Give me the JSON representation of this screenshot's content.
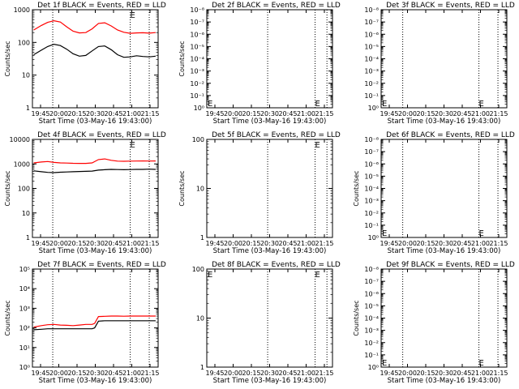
{
  "figure": {
    "x_tick_labels": [
      "19:45",
      "20:00",
      "20:15",
      "20:30",
      "20:45",
      "21:00",
      "21:15"
    ],
    "x_label": "Start Time (03-May-16 19:43:00)",
    "y_label": "Counts/sec",
    "legend_text": "BLACK = Events, RED = LLD",
    "colors": {
      "events": "#000000",
      "lld": "#ff0000",
      "dotted_markers": "#000000"
    }
  },
  "chart_data": [
    {
      "type": "line",
      "title": "Det 1f BLACK = Events, RED = LLD",
      "xlabel": "Start Time (03-May-16 19:43:00)",
      "ylabel": "Counts/sec",
      "yscale": "log",
      "ylim": [
        1,
        1000
      ],
      "ytick_labels": [
        "1",
        "10",
        "100",
        "1000"
      ],
      "xlim": [
        "19:43",
        "21:22"
      ],
      "dotted_vlines": [
        "19:59",
        "21:00",
        "21:15"
      ],
      "markers": [
        {
          "label": "E",
          "x": "21:00",
          "y": 1000
        }
      ],
      "series": [
        {
          "name": "Events",
          "color": "#000000",
          "x": [
            "19:44",
            "19:50",
            "19:55",
            "20:00",
            "20:05",
            "20:10",
            "20:15",
            "20:20",
            "20:25",
            "20:30",
            "20:35",
            "20:40",
            "20:45",
            "20:50",
            "20:55",
            "21:00",
            "21:05",
            "21:10",
            "21:15",
            "21:20"
          ],
          "y": [
            42,
            58,
            75,
            88,
            80,
            62,
            45,
            38,
            40,
            55,
            75,
            78,
            60,
            42,
            35,
            36,
            39,
            37,
            36,
            38
          ]
        },
        {
          "name": "LLD",
          "color": "#ff0000",
          "x": [
            "19:44",
            "19:50",
            "19:55",
            "20:00",
            "20:05",
            "20:10",
            "20:15",
            "20:20",
            "20:25",
            "20:30",
            "20:35",
            "20:40",
            "20:45",
            "20:50",
            "20:55",
            "21:00",
            "21:05",
            "21:10",
            "21:15",
            "21:20"
          ],
          "y": [
            240,
            330,
            410,
            460,
            420,
            300,
            220,
            195,
            200,
            260,
            380,
            400,
            320,
            240,
            205,
            190,
            195,
            198,
            192,
            200
          ]
        }
      ]
    },
    {
      "type": "line",
      "title": "Det 2f BLACK = Events, RED = LLD",
      "xlabel": "Start Time (03-May-16 19:43:00)",
      "ylabel": "Counts/sec",
      "yscale": "log",
      "ylim": [
        1,
        1e-08
      ],
      "ytick_labels": [
        "10⁰",
        "10⁻¹",
        "10⁻²",
        "10⁻³",
        "10⁻⁴",
        "10⁻⁵",
        "10⁻⁶",
        "10⁻⁷",
        "10⁻⁸"
      ],
      "xlim": [
        "18:43",
        "21:22"
      ],
      "dotted_vlines": [
        "20:00",
        "21:00",
        "21:15"
      ],
      "markers": [
        {
          "label": "E",
          "x": "18:43",
          "y": 1
        },
        {
          "label": "E",
          "x": "21:00",
          "y": 1
        }
      ],
      "series": []
    },
    {
      "type": "line",
      "title": "Det 3f BLACK = Events, RED = LLD",
      "xlabel": "Start Time (03-May-16 19:43:00)",
      "ylabel": "",
      "yscale": "log",
      "ylim": [
        1,
        1e-08
      ],
      "ytick_labels": [
        "10⁰",
        "10⁻¹",
        "10⁻²",
        "10⁻³",
        "10⁻⁴",
        "10⁻⁵",
        "10⁻⁶",
        "10⁻⁷",
        "10⁻⁸"
      ],
      "xlim": [
        "19:43",
        "21:22"
      ],
      "dotted_vlines": [
        "20:00",
        "21:00",
        "21:15"
      ],
      "markers": [
        {
          "label": "E",
          "x": "19:43",
          "y": 1
        },
        {
          "label": "E",
          "x": "21:00",
          "y": 1
        }
      ],
      "series": []
    },
    {
      "type": "line",
      "title": "Det 4f BLACK = Events, RED = LLD",
      "xlabel": "Start Time (03-May-16 19:43:00)",
      "ylabel": "Counts/sec",
      "yscale": "log",
      "ylim": [
        1,
        10000
      ],
      "ytick_labels": [
        "1",
        "10",
        "100",
        "1000",
        "10000"
      ],
      "xlim": [
        "19:43",
        "21:22"
      ],
      "dotted_vlines": [
        "19:59",
        "21:00",
        "21:15"
      ],
      "markers": [
        {
          "label": "E",
          "x": "21:00",
          "y": 10000
        }
      ],
      "series": [
        {
          "name": "Events",
          "color": "#000000",
          "x": [
            "19:44",
            "19:50",
            "19:55",
            "20:00",
            "20:05",
            "20:10",
            "20:15",
            "20:20",
            "20:25",
            "20:30",
            "20:35",
            "20:40",
            "20:45",
            "20:50",
            "20:55",
            "21:00",
            "21:05",
            "21:10",
            "21:15",
            "21:20"
          ],
          "y": [
            520,
            480,
            450,
            440,
            460,
            470,
            480,
            490,
            500,
            510,
            560,
            580,
            600,
            590,
            580,
            590,
            600,
            600,
            610,
            600
          ]
        },
        {
          "name": "LLD",
          "color": "#ff0000",
          "x": [
            "19:44",
            "19:50",
            "19:55",
            "20:00",
            "20:05",
            "20:10",
            "20:15",
            "20:20",
            "20:25",
            "20:30",
            "20:35",
            "20:40",
            "20:45",
            "20:50",
            "20:55",
            "21:00",
            "21:05",
            "21:10",
            "21:15",
            "21:20"
          ],
          "y": [
            1100,
            1200,
            1250,
            1150,
            1100,
            1080,
            1060,
            1050,
            1050,
            1100,
            1500,
            1600,
            1400,
            1300,
            1280,
            1300,
            1310,
            1320,
            1310,
            1320
          ]
        }
      ]
    },
    {
      "type": "line",
      "title": "Det 5f BLACK = Events, RED = LLD",
      "xlabel": "Start Time (03-May-16 19:43:00)",
      "ylabel": "Counts/sec",
      "yscale": "log",
      "ylim": [
        1,
        100
      ],
      "ytick_labels": [
        "1",
        "10",
        "100"
      ],
      "xlim": [
        "18:43",
        "21:22"
      ],
      "dotted_vlines": [
        "20:00",
        "21:00",
        "21:15"
      ],
      "markers": [
        {
          "label": "E",
          "x": "21:00",
          "y": 100
        }
      ],
      "series": []
    },
    {
      "type": "line",
      "title": "Det 6f BLACK = Events, RED = LLD",
      "xlabel": "Start Time (03-May-16 19:43:00)",
      "ylabel": "Counts/sec",
      "yscale": "log",
      "ylim": [
        1,
        1e-08
      ],
      "ytick_labels": [
        "10⁰",
        "10⁻¹",
        "10⁻²",
        "10⁻³",
        "10⁻⁴",
        "10⁻⁵",
        "10⁻⁶",
        "10⁻⁷",
        "10⁻⁸"
      ],
      "xlim": [
        "19:43",
        "21:22"
      ],
      "dotted_vlines": [
        "20:00",
        "21:00",
        "21:15"
      ],
      "markers": [
        {
          "label": "E",
          "x": "19:43",
          "y": 1
        },
        {
          "label": "E",
          "x": "21:00",
          "y": 1
        }
      ],
      "series": []
    },
    {
      "type": "line",
      "title": "Det 7f BLACK = Events, RED = LLD",
      "xlabel": "Start Time (03-May-16 19:43:00)",
      "ylabel": "Counts/sec",
      "yscale": "log",
      "ylim": [
        1,
        100000
      ],
      "ytick_labels": [
        "10⁰",
        "10¹",
        "10²",
        "10³",
        "10⁴",
        "10⁵"
      ],
      "xlim": [
        "19:43",
        "21:22"
      ],
      "dotted_vlines": [
        "19:59",
        "21:00",
        "21:15"
      ],
      "markers": [],
      "series": [
        {
          "name": "Events",
          "color": "#000000",
          "x": [
            "19:44",
            "19:50",
            "19:55",
            "20:00",
            "20:05",
            "20:10",
            "20:15",
            "20:20",
            "20:25",
            "20:30",
            "20:32",
            "20:35",
            "20:40",
            "20:45",
            "20:50",
            "20:55",
            "21:00",
            "21:05",
            "21:10",
            "21:15",
            "21:20"
          ],
          "y": [
            80,
            85,
            90,
            90,
            90,
            90,
            90,
            90,
            90,
            90,
            100,
            220,
            230,
            230,
            230,
            230,
            230,
            230,
            230,
            230,
            230
          ]
        },
        {
          "name": "LLD",
          "color": "#ff0000",
          "x": [
            "19:44",
            "19:50",
            "19:55",
            "20:00",
            "20:05",
            "20:10",
            "20:15",
            "20:20",
            "20:25",
            "20:30",
            "20:32",
            "20:35",
            "20:40",
            "20:45",
            "20:50",
            "20:55",
            "21:00",
            "21:05",
            "21:10",
            "21:15",
            "21:20"
          ],
          "y": [
            110,
            130,
            145,
            150,
            140,
            135,
            130,
            140,
            150,
            150,
            170,
            380,
            390,
            400,
            400,
            395,
            400,
            400,
            400,
            400,
            400
          ]
        }
      ]
    },
    {
      "type": "line",
      "title": "Det 8f BLACK = Events, RED = LLD",
      "xlabel": "Start Time (03-May-16 19:43:00)",
      "ylabel": "",
      "yscale": "log",
      "ylim": [
        1,
        100
      ],
      "ytick_labels": [
        "1",
        "10",
        "100"
      ],
      "xlim": [
        "18:43",
        "21:22"
      ],
      "dotted_vlines": [
        "20:00",
        "21:00",
        "21:15"
      ],
      "markers": [
        {
          "label": "E",
          "x": "18:43",
          "y": 100
        },
        {
          "label": "E",
          "x": "21:00",
          "y": 100
        }
      ],
      "series": []
    },
    {
      "type": "line",
      "title": "Det 9f BLACK = Events, RED = LLD",
      "xlabel": "Start Time (03-May-16 19:43:00)",
      "ylabel": "Counts/sec",
      "yscale": "log",
      "ylim": [
        1,
        1e-08
      ],
      "ytick_labels": [
        "10⁰",
        "10⁻¹",
        "10⁻²",
        "10⁻³",
        "10⁻⁴",
        "10⁻⁵",
        "10⁻⁶",
        "10⁻⁷",
        "10⁻⁸"
      ],
      "xlim": [
        "19:43",
        "21:22"
      ],
      "dotted_vlines": [
        "20:00",
        "21:00",
        "21:15"
      ],
      "markers": [
        {
          "label": "E",
          "x": "19:43",
          "y": 1
        },
        {
          "label": "E",
          "x": "21:00",
          "y": 1
        }
      ],
      "series": []
    }
  ]
}
